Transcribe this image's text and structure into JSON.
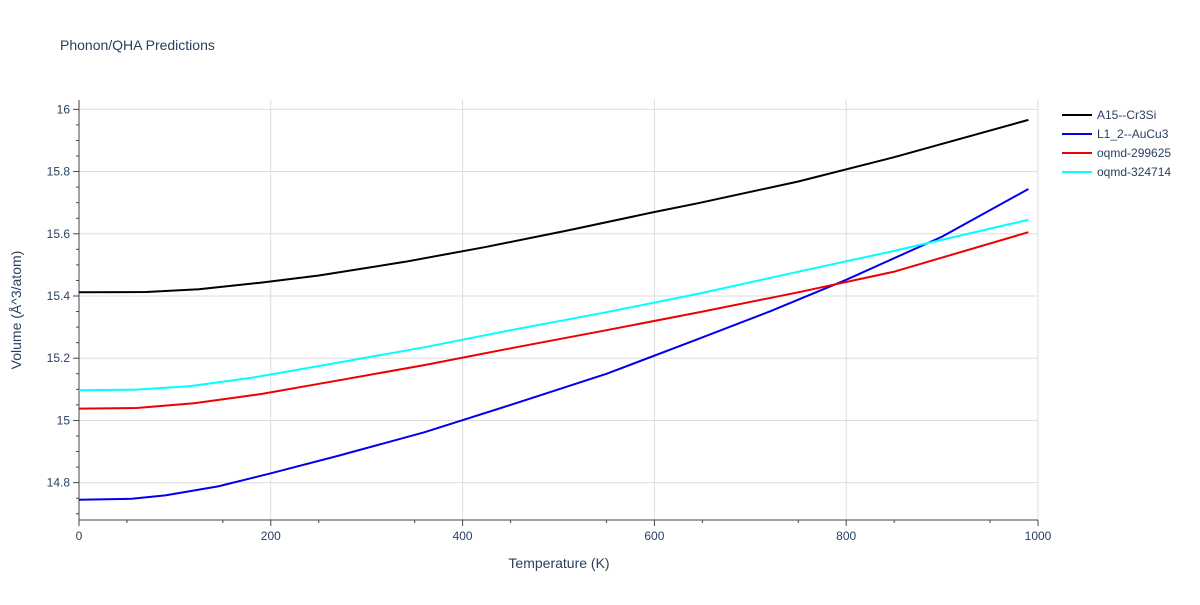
{
  "chart_data": {
    "type": "line",
    "title": "Phonon/QHA Predictions",
    "xlabel": "Temperature (K)",
    "ylabel": "Volume (Å^3/atom)",
    "xlim": [
      0,
      1000
    ],
    "ylim": [
      14.68,
      16.03
    ],
    "x_ticks": [
      0,
      200,
      400,
      600,
      800,
      1000
    ],
    "x_tick_labels": [
      "0",
      "200",
      "400",
      "600",
      "800",
      "1000"
    ],
    "y_ticks": [
      14.8,
      15,
      15.2,
      15.4,
      15.6,
      15.8,
      16
    ],
    "y_tick_labels": [
      "14.8",
      "15",
      "15.2",
      "15.4",
      "15.6",
      "15.8",
      "16"
    ],
    "grid": true,
    "legend_position": "top-right",
    "series": [
      {
        "name": "A15--Cr3Si",
        "color": "#000000",
        "x": [
          0,
          70,
          125,
          190,
          250,
          340,
          425,
          510,
          600,
          645,
          750,
          850,
          990
        ],
        "y": [
          15.412,
          15.413,
          15.422,
          15.443,
          15.466,
          15.51,
          15.558,
          15.611,
          15.67,
          15.698,
          15.768,
          15.846,
          15.966
        ]
      },
      {
        "name": "L1_2--AuCu3",
        "color": "#0000ee",
        "x": [
          0,
          55,
          90,
          145,
          200,
          270,
          360,
          450,
          550,
          640,
          720,
          800,
          900,
          990
        ],
        "y": [
          14.745,
          14.748,
          14.759,
          14.788,
          14.83,
          14.886,
          14.962,
          15.05,
          15.15,
          15.255,
          15.35,
          15.452,
          15.591,
          15.744
        ]
      },
      {
        "name": "oqmd-299625",
        "color": "#ee0000",
        "x": [
          0,
          60,
          120,
          190,
          260,
          360,
          450,
          550,
          650,
          750,
          850,
          990
        ],
        "y": [
          15.038,
          15.04,
          15.055,
          15.085,
          15.123,
          15.178,
          15.232,
          15.29,
          15.35,
          15.412,
          15.478,
          15.605
        ]
      },
      {
        "name": "oqmd-324714",
        "color": "#00ffff",
        "x": [
          0,
          60,
          115,
          180,
          260,
          360,
          450,
          550,
          650,
          750,
          850,
          990
        ],
        "y": [
          15.097,
          15.099,
          15.11,
          15.137,
          15.18,
          15.235,
          15.29,
          15.348,
          15.41,
          15.478,
          15.545,
          15.645
        ]
      }
    ]
  }
}
